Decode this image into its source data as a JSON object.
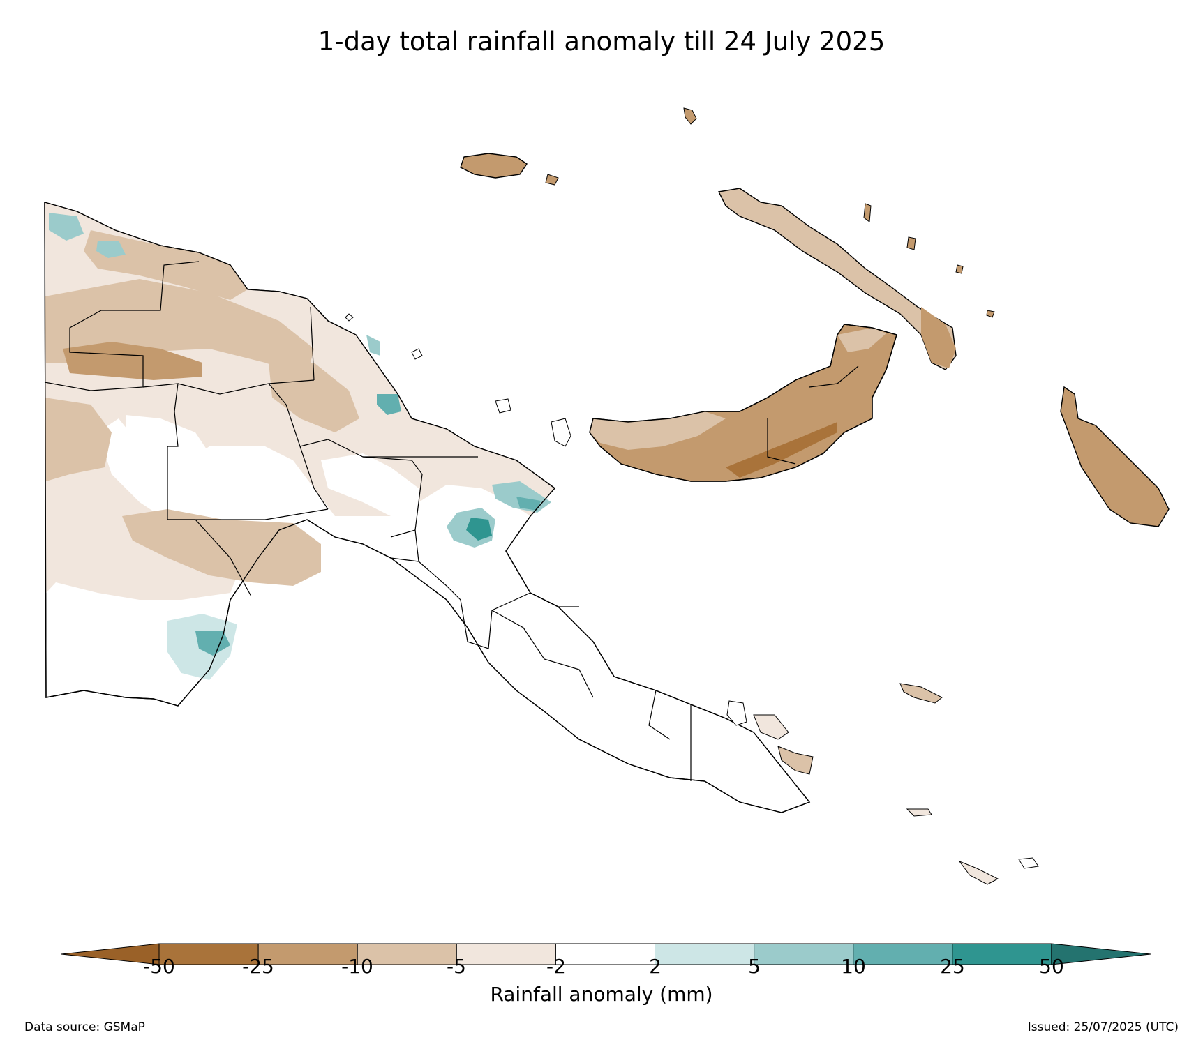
{
  "title": "1-day total rainfall anomaly till 24 July 2025",
  "colorbar": {
    "label": "Rainfall anomaly (mm)",
    "ticks": [
      "-50",
      "-25",
      "-10",
      "-5",
      "-2",
      "2",
      "5",
      "10",
      "25",
      "50"
    ],
    "colors": [
      "#9a6128",
      "#a9733a",
      "#c39a6e",
      "#dbc2a8",
      "#f1e6dd",
      "#ffffff",
      "#cde6e6",
      "#9bcbcb",
      "#62afaf",
      "#2f9590",
      "#24736f"
    ]
  },
  "footer": {
    "source": "Data source: GSMaP",
    "issued": "Issued: 25/07/2025 (UTC)"
  }
}
